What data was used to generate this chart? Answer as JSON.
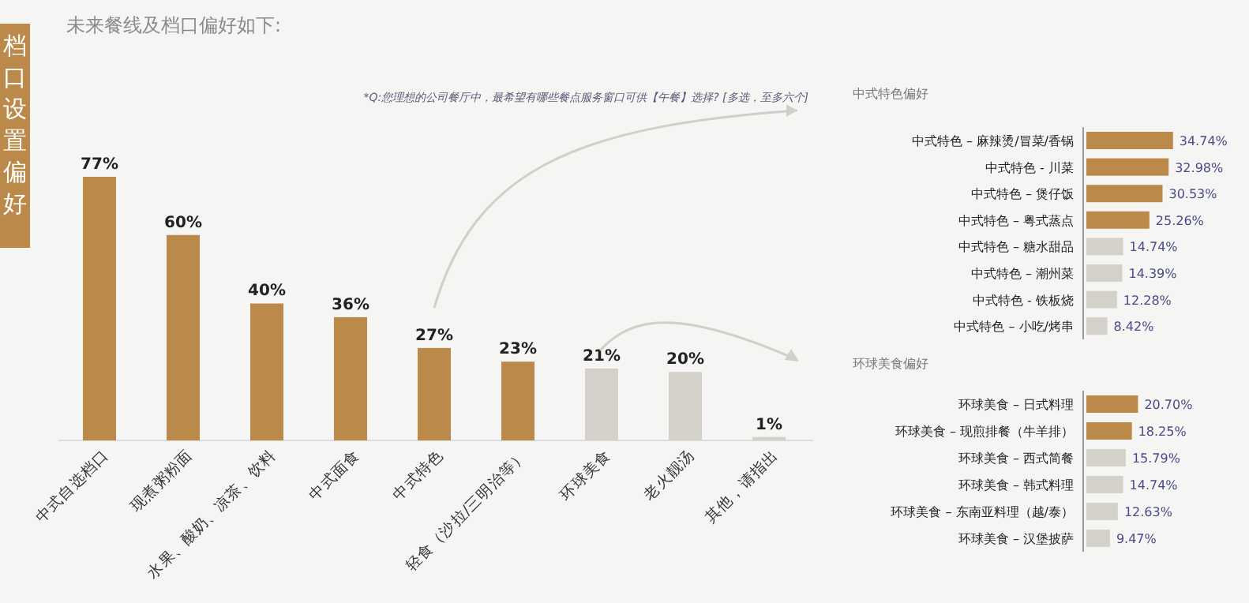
{
  "chart_data": [
    {
      "type": "bar",
      "title": "未来餐线及档口偏好如下:",
      "annotations": [
        "档口设置偏好",
        "*Q:您理想的公司餐厅中，最希望有哪些餐点服务窗口可供【午餐】选择? [多选，至多六个]"
      ],
      "categories": [
        "中式自选档口",
        "现煮粥粉面",
        "水果、酸奶、凉茶、饮料",
        "中式面食",
        "中式特色",
        "轻食（沙拉/三明治等）",
        "环球美食",
        "老火靓汤",
        "其他，请指出"
      ],
      "values": [
        77,
        60,
        40,
        36,
        27,
        23,
        21,
        20,
        1
      ],
      "colors": [
        "#bb8a4a",
        "#bb8a4a",
        "#bb8a4a",
        "#bb8a4a",
        "#bb8a4a",
        "#bb8a4a",
        "#d4d1ca",
        "#d4d1ca",
        "#d4d1ca"
      ],
      "value_labels": [
        "77%",
        "60%",
        "40%",
        "36%",
        "27%",
        "23%",
        "21%",
        "20%",
        "1%"
      ]
    },
    {
      "type": "bar",
      "orientation": "horizontal",
      "title": "中式特色偏好",
      "categories": [
        "中式特色 – 麻辣烫/冒菜/香锅",
        "中式特色 - 川菜",
        "中式特色 – 煲仔饭",
        "中式特色 – 粤式蒸点",
        "中式特色 – 糖水甜品",
        "中式特色 – 潮州菜",
        "中式特色 - 铁板烧",
        "中式特色 – 小吃/烤串"
      ],
      "values": [
        34.74,
        32.98,
        30.53,
        25.26,
        14.74,
        14.39,
        12.28,
        8.42
      ],
      "colors": [
        "#bb8a4a",
        "#bb8a4a",
        "#bb8a4a",
        "#bb8a4a",
        "#d4d1ca",
        "#d4d1ca",
        "#d4d1ca",
        "#d4d1ca"
      ],
      "value_labels": [
        "34.74%",
        "32.98%",
        "30.53%",
        "25.26%",
        "14.74%",
        "14.39%",
        "12.28%",
        "8.42%"
      ]
    },
    {
      "type": "bar",
      "orientation": "horizontal",
      "title": "环球美食偏好",
      "categories": [
        "环球美食 – 日式料理",
        "环球美食 – 现煎排餐（牛羊排）",
        "环球美食 – 西式简餐",
        "环球美食 – 韩式料理",
        "环球美食 – 东南亚料理（越/泰）",
        "环球美食 – 汉堡披萨"
      ],
      "values": [
        20.7,
        18.25,
        15.79,
        14.74,
        12.63,
        9.47
      ],
      "colors": [
        "#bb8a4a",
        "#bb8a4a",
        "#d4d1ca",
        "#d4d1ca",
        "#d4d1ca",
        "#d4d1ca"
      ],
      "value_labels": [
        "20.70%",
        "18.25%",
        "15.79%",
        "14.74%",
        "12.63%",
        "9.47%"
      ]
    }
  ]
}
